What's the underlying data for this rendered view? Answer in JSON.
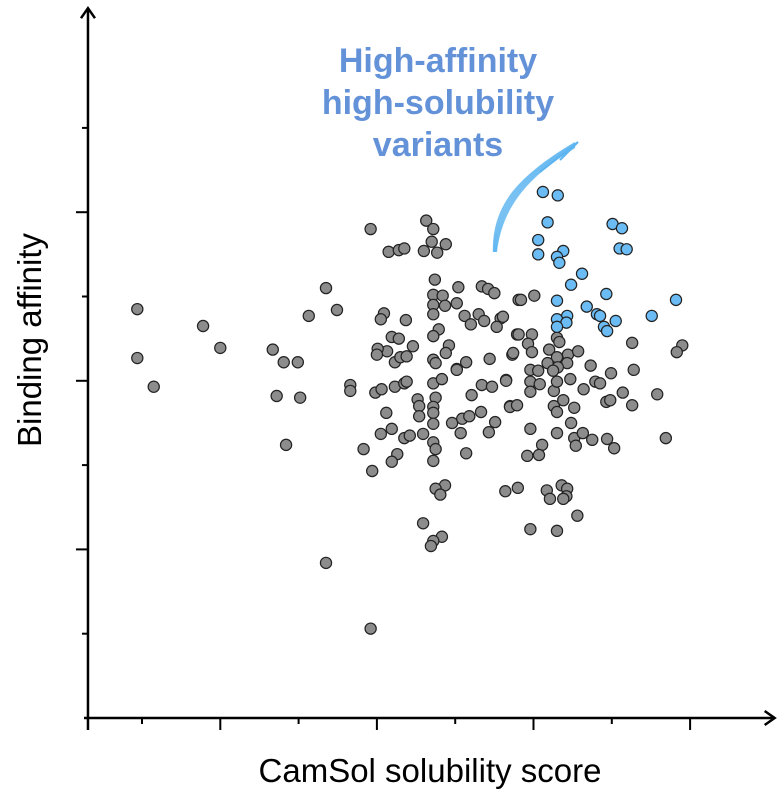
{
  "chart_data": {
    "type": "scatter",
    "title": "",
    "xlabel": "CamSol solubility score",
    "ylabel": "Binding affinity",
    "xlim": [
      0.31,
      9.08
    ],
    "ylim": [
      0,
      8.42
    ],
    "x_ticks": [
      1,
      2,
      3,
      4,
      5,
      6,
      7,
      8
    ],
    "x_major_ticks": [
      2,
      4,
      6,
      8
    ],
    "y_ticks": [
      1,
      2,
      3,
      4,
      5,
      6,
      7
    ],
    "y_major_ticks": [
      2,
      4,
      6
    ],
    "tick_labels_shown": false,
    "grid": false,
    "legend": "none",
    "annotation": {
      "lines": [
        "High-affinity",
        "high-solubility",
        "variants"
      ],
      "color": "#6492d8",
      "arrow_color": "#5cb4f0"
    },
    "series": [
      {
        "color": "#8c8c8c",
        "points": [
          [
            0.94,
            4.85
          ],
          [
            0.94,
            4.27
          ],
          [
            1.15,
            3.93
          ],
          [
            1.78,
            4.65
          ],
          [
            2.0,
            4.39
          ],
          [
            2.67,
            4.37
          ],
          [
            2.81,
            4.22
          ],
          [
            2.99,
            4.22
          ],
          [
            2.72,
            3.82
          ],
          [
            3.02,
            3.8
          ],
          [
            2.84,
            3.24
          ],
          [
            3.35,
            5.1
          ],
          [
            3.49,
            4.84
          ],
          [
            3.13,
            4.77
          ],
          [
            3.35,
            1.84
          ],
          [
            3.92,
            1.06
          ],
          [
            3.92,
            5.8
          ],
          [
            4.63,
            5.9
          ],
          [
            4.72,
            5.8
          ],
          [
            4.15,
            5.53
          ],
          [
            4.28,
            5.55
          ],
          [
            4.35,
            5.57
          ],
          [
            4.7,
            5.65
          ],
          [
            4.88,
            5.62
          ],
          [
            4.6,
            5.54
          ],
          [
            4.77,
            5.52
          ],
          [
            4.74,
            5.2
          ],
          [
            5.04,
            5.11
          ],
          [
            5.34,
            5.12
          ],
          [
            5.42,
            5.09
          ],
          [
            5.5,
            5.04
          ],
          [
            4.72,
            5.02
          ],
          [
            4.84,
            5.01
          ],
          [
            5.02,
            4.92
          ],
          [
            4.72,
            4.9
          ],
          [
            4.87,
            4.89
          ],
          [
            4.72,
            4.79
          ],
          [
            4.09,
            4.8
          ],
          [
            4.05,
            4.73
          ],
          [
            4.37,
            4.72
          ],
          [
            5.12,
            4.77
          ],
          [
            5.2,
            4.67
          ],
          [
            5.3,
            4.79
          ],
          [
            5.37,
            4.71
          ],
          [
            5.58,
            4.74
          ],
          [
            5.53,
            4.64
          ],
          [
            4.79,
            4.61
          ],
          [
            4.72,
            4.53
          ],
          [
            4.19,
            4.52
          ],
          [
            4.28,
            4.5
          ],
          [
            4.46,
            4.41
          ],
          [
            4.92,
            4.42
          ],
          [
            4.88,
            4.33
          ],
          [
            4.13,
            4.35
          ],
          [
            4.01,
            4.38
          ],
          [
            4.0,
            4.31
          ],
          [
            4.23,
            4.22
          ],
          [
            4.3,
            4.28
          ],
          [
            4.38,
            4.29
          ],
          [
            4.72,
            4.25
          ],
          [
            4.75,
            4.21
          ],
          [
            5.02,
            4.14
          ],
          [
            5.14,
            4.22
          ],
          [
            5.44,
            4.26
          ],
          [
            5.73,
            4.31
          ],
          [
            5.81,
            4.96
          ],
          [
            5.79,
            4.55
          ],
          [
            3.66,
            3.95
          ],
          [
            3.66,
            3.88
          ],
          [
            3.98,
            3.86
          ],
          [
            4.06,
            3.9
          ],
          [
            4.23,
            3.93
          ],
          [
            4.35,
            3.97
          ],
          [
            4.38,
            3.99
          ],
          [
            4.72,
            3.97
          ],
          [
            4.83,
            4.02
          ],
          [
            5.02,
            4.13
          ],
          [
            5.34,
            3.95
          ],
          [
            5.47,
            3.93
          ],
          [
            5.65,
            4.01
          ],
          [
            5.21,
            3.83
          ],
          [
            5.7,
            3.7
          ],
          [
            4.52,
            3.78
          ],
          [
            4.54,
            3.7
          ],
          [
            4.75,
            3.8
          ],
          [
            4.72,
            3.69
          ],
          [
            4.72,
            3.62
          ],
          [
            4.54,
            3.58
          ],
          [
            4.72,
            3.49
          ],
          [
            4.12,
            3.62
          ],
          [
            4.96,
            3.5
          ],
          [
            5.09,
            3.55
          ],
          [
            5.18,
            3.58
          ],
          [
            5.33,
            3.63
          ],
          [
            5.51,
            3.51
          ],
          [
            5.07,
            3.38
          ],
          [
            5.43,
            3.39
          ],
          [
            4.19,
            3.43
          ],
          [
            4.05,
            3.37
          ],
          [
            4.35,
            3.32
          ],
          [
            4.42,
            3.35
          ],
          [
            4.59,
            3.37
          ],
          [
            4.72,
            3.27
          ],
          [
            4.75,
            3.19
          ],
          [
            3.83,
            3.19
          ],
          [
            4.26,
            3.13
          ],
          [
            4.19,
            3.04
          ],
          [
            4.72,
            3.05
          ],
          [
            5.14,
            3.14
          ],
          [
            3.94,
            2.93
          ],
          [
            4.87,
            2.76
          ],
          [
            4.75,
            2.72
          ],
          [
            4.81,
            2.65
          ],
          [
            5.64,
            2.69
          ],
          [
            5.8,
            2.73
          ],
          [
            4.59,
            2.31
          ],
          [
            4.83,
            2.15
          ],
          [
            4.72,
            2.1
          ],
          [
            4.69,
            2.04
          ],
          [
            5.84,
            4.96
          ],
          [
            6.01,
            5.01
          ],
          [
            5.61,
            4.76
          ],
          [
            5.81,
            4.55
          ],
          [
            5.98,
            4.55
          ],
          [
            5.93,
            4.44
          ],
          [
            5.98,
            4.34
          ],
          [
            5.74,
            4.33
          ],
          [
            6.2,
            4.37
          ],
          [
            6.3,
            4.51
          ],
          [
            6.33,
            4.46
          ],
          [
            6.44,
            4.31
          ],
          [
            6.57,
            4.35
          ],
          [
            6.3,
            4.28
          ],
          [
            6.18,
            4.21
          ],
          [
            6.43,
            4.21
          ],
          [
            6.31,
            4.16
          ],
          [
            7.26,
            4.45
          ],
          [
            7.9,
            4.42
          ],
          [
            7.83,
            4.34
          ],
          [
            6.73,
            4.18
          ],
          [
            6.99,
            4.09
          ],
          [
            7.28,
            4.13
          ],
          [
            5.96,
            4.13
          ],
          [
            6.06,
            4.12
          ],
          [
            6.25,
            4.12
          ],
          [
            5.65,
            4.0
          ],
          [
            5.96,
            3.99
          ],
          [
            6.08,
            3.96
          ],
          [
            5.96,
            3.87
          ],
          [
            6.26,
            3.88
          ],
          [
            6.3,
            3.99
          ],
          [
            6.47,
            4.02
          ],
          [
            6.64,
            3.9
          ],
          [
            6.79,
            3.99
          ],
          [
            6.85,
            3.97
          ],
          [
            7.14,
            3.86
          ],
          [
            7.58,
            3.84
          ],
          [
            6.93,
            3.75
          ],
          [
            6.98,
            3.77
          ],
          [
            7.26,
            3.71
          ],
          [
            5.7,
            3.69
          ],
          [
            5.79,
            3.71
          ],
          [
            6.26,
            3.7
          ],
          [
            6.3,
            3.63
          ],
          [
            6.38,
            3.77
          ],
          [
            6.52,
            3.68
          ],
          [
            6.48,
            3.5
          ],
          [
            5.96,
            3.43
          ],
          [
            6.3,
            3.38
          ],
          [
            6.52,
            3.32
          ],
          [
            6.54,
            3.23
          ],
          [
            6.63,
            3.38
          ],
          [
            6.75,
            3.3
          ],
          [
            6.94,
            3.31
          ],
          [
            7.03,
            3.2
          ],
          [
            7.69,
            3.32
          ],
          [
            6.11,
            3.24
          ],
          [
            6.07,
            3.12
          ],
          [
            5.92,
            3.11
          ],
          [
            6.17,
            2.7
          ],
          [
            6.21,
            2.6
          ],
          [
            6.36,
            2.76
          ],
          [
            6.43,
            2.72
          ],
          [
            6.42,
            2.63
          ],
          [
            6.38,
            2.6
          ],
          [
            6.56,
            2.4
          ],
          [
            5.96,
            2.24
          ],
          [
            6.3,
            2.22
          ]
        ]
      },
      {
        "color": "#6bbcf5",
        "points": [
          [
            6.12,
            6.24
          ],
          [
            6.31,
            6.2
          ],
          [
            6.18,
            5.88
          ],
          [
            7.01,
            5.86
          ],
          [
            7.13,
            5.81
          ],
          [
            6.06,
            5.67
          ],
          [
            6.06,
            5.5
          ],
          [
            6.38,
            5.54
          ],
          [
            6.3,
            5.47
          ],
          [
            6.33,
            5.4
          ],
          [
            7.1,
            5.57
          ],
          [
            7.19,
            5.56
          ],
          [
            6.62,
            5.27
          ],
          [
            6.48,
            5.14
          ],
          [
            6.93,
            5.03
          ],
          [
            7.82,
            4.96
          ],
          [
            6.3,
            4.95
          ],
          [
            6.68,
            4.88
          ],
          [
            6.81,
            4.79
          ],
          [
            6.85,
            4.77
          ],
          [
            7.51,
            4.77
          ],
          [
            7.05,
            4.71
          ],
          [
            6.43,
            4.77
          ],
          [
            6.3,
            4.73
          ],
          [
            6.42,
            4.69
          ],
          [
            6.3,
            4.64
          ],
          [
            6.9,
            4.64
          ],
          [
            6.94,
            4.59
          ]
        ]
      }
    ]
  }
}
